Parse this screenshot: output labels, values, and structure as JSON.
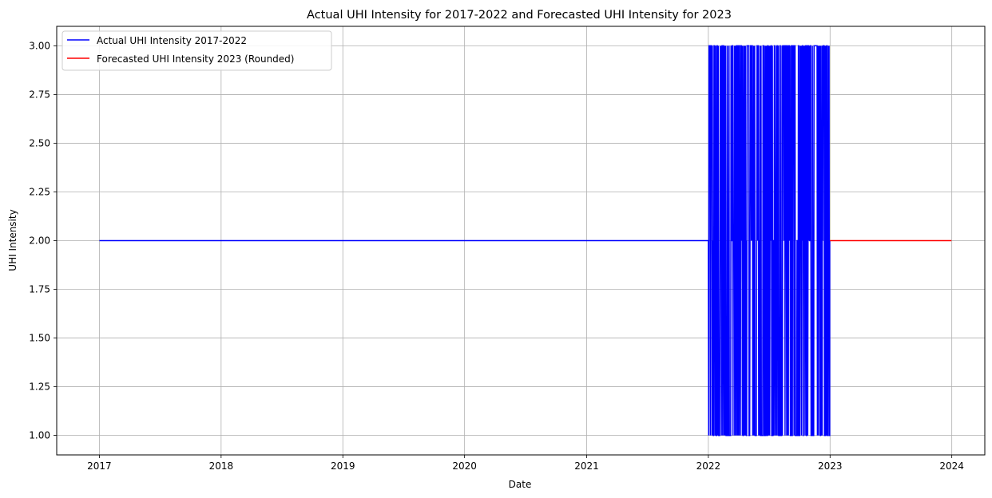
{
  "chart_data": {
    "type": "line",
    "title": "Actual UHI Intensity for 2017-2022 and Forecasted UHI Intensity for 2023",
    "xlabel": "Date",
    "ylabel": "UHI Intensity",
    "xlim": [
      "2016-08-26",
      "2024-04-09"
    ],
    "ylim": [
      0.9,
      3.1
    ],
    "x_ticks": [
      "2017",
      "2018",
      "2019",
      "2020",
      "2021",
      "2022",
      "2023",
      "2024"
    ],
    "y_ticks": [
      "1.00",
      "1.25",
      "1.50",
      "1.75",
      "2.00",
      "2.25",
      "2.50",
      "2.75",
      "3.00"
    ],
    "grid": true,
    "legend_position": "top-left",
    "series": [
      {
        "name": "Actual UHI Intensity 2017-2022",
        "color": "#0000ff",
        "segments": [
          {
            "x_start": "2017-01-01",
            "x_end": "2021-12-31",
            "value": 2
          },
          {
            "x_start": "2022-01-01",
            "x_end": "2022-12-31",
            "values": [
              1,
              2,
              3
            ],
            "pattern": "daily-oscillating"
          }
        ]
      },
      {
        "name": "Forecasted UHI Intensity 2023 (Rounded)",
        "color": "#ff0000",
        "segments": [
          {
            "x_start": "2023-01-01",
            "x_end": "2023-12-31",
            "value": 2
          }
        ]
      }
    ]
  }
}
